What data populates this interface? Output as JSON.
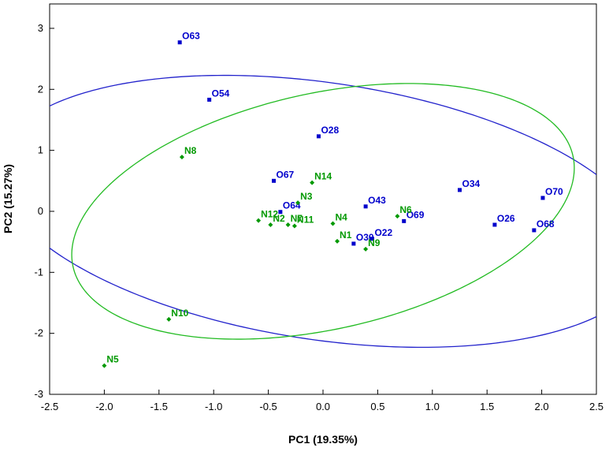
{
  "chart_data": {
    "type": "scatter",
    "xlabel": "PC1 (19.35%)",
    "ylabel": "PC2 (15.27%)",
    "xlim": [
      -2.5,
      2.5
    ],
    "ylim": [
      -3,
      3.4
    ],
    "xticks": [
      -2.5,
      -2.0,
      -1.5,
      -1.0,
      -0.5,
      0.0,
      0.5,
      1.0,
      1.5,
      2.0,
      2.5
    ],
    "xtick_labels": [
      "-2.5",
      "-2.0",
      "-1.5",
      "-1.0",
      "-0.5",
      "0.0",
      "0.5",
      "1.0",
      "1.5",
      "2.0",
      "2.5"
    ],
    "yticks": [
      -3,
      -2,
      -1,
      0,
      1,
      2,
      3
    ],
    "ytick_labels": [
      "-3",
      "-2",
      "-1",
      "0",
      "1",
      "2",
      "3"
    ],
    "grid": false,
    "series": [
      {
        "color": "#0000cc",
        "marker": "square",
        "points": [
          {
            "label": "O63",
            "x": -1.31,
            "y": 2.77
          },
          {
            "label": "O54",
            "x": -1.04,
            "y": 1.83
          },
          {
            "label": "O28",
            "x": -0.04,
            "y": 1.23
          },
          {
            "label": "O67",
            "x": -0.45,
            "y": 0.5
          },
          {
            "label": "O64",
            "x": -0.39,
            "y": -0.01
          },
          {
            "label": "O43",
            "x": 0.39,
            "y": 0.08
          },
          {
            "label": "O34",
            "x": 1.25,
            "y": 0.35
          },
          {
            "label": "O70",
            "x": 2.01,
            "y": 0.22
          },
          {
            "label": "O22",
            "x": 0.45,
            "y": -0.45
          },
          {
            "label": "O69",
            "x": 0.74,
            "y": -0.16
          },
          {
            "label": "O30",
            "x": 0.28,
            "y": -0.53
          },
          {
            "label": "O26",
            "x": 1.57,
            "y": -0.22
          },
          {
            "label": "O68",
            "x": 1.93,
            "y": -0.31
          }
        ]
      },
      {
        "color": "#009900",
        "marker": "diamond",
        "points": [
          {
            "label": "N8",
            "x": -1.29,
            "y": 0.89
          },
          {
            "label": "N14",
            "x": -0.1,
            "y": 0.47
          },
          {
            "label": "N3",
            "x": -0.23,
            "y": 0.14
          },
          {
            "label": "N12",
            "x": -0.59,
            "y": -0.15
          },
          {
            "label": "N2",
            "x": -0.48,
            "y": -0.22
          },
          {
            "label": "N7",
            "x": -0.32,
            "y": -0.22
          },
          {
            "label": "N11",
            "x": -0.26,
            "y": -0.24
          },
          {
            "label": "N4",
            "x": 0.09,
            "y": -0.2
          },
          {
            "label": "N1",
            "x": 0.13,
            "y": -0.49
          },
          {
            "label": "N6",
            "x": 0.68,
            "y": -0.08
          },
          {
            "label": "N9",
            "x": 0.39,
            "y": -0.62
          },
          {
            "label": "N10",
            "x": -1.41,
            "y": -1.77
          },
          {
            "label": "N5",
            "x": -2.0,
            "y": -2.53
          }
        ]
      }
    ],
    "ellipses": [
      {
        "color": "#2222cc",
        "cx": 0.0,
        "cy": 0.0,
        "a": 3.126,
        "b": 2.032,
        "rotation_deg": -22.7
      },
      {
        "color": "#22bb22",
        "cx": 0.0,
        "cy": 0.0,
        "a": 2.555,
        "b": 1.773,
        "rotation_deg": 37.4
      }
    ]
  }
}
